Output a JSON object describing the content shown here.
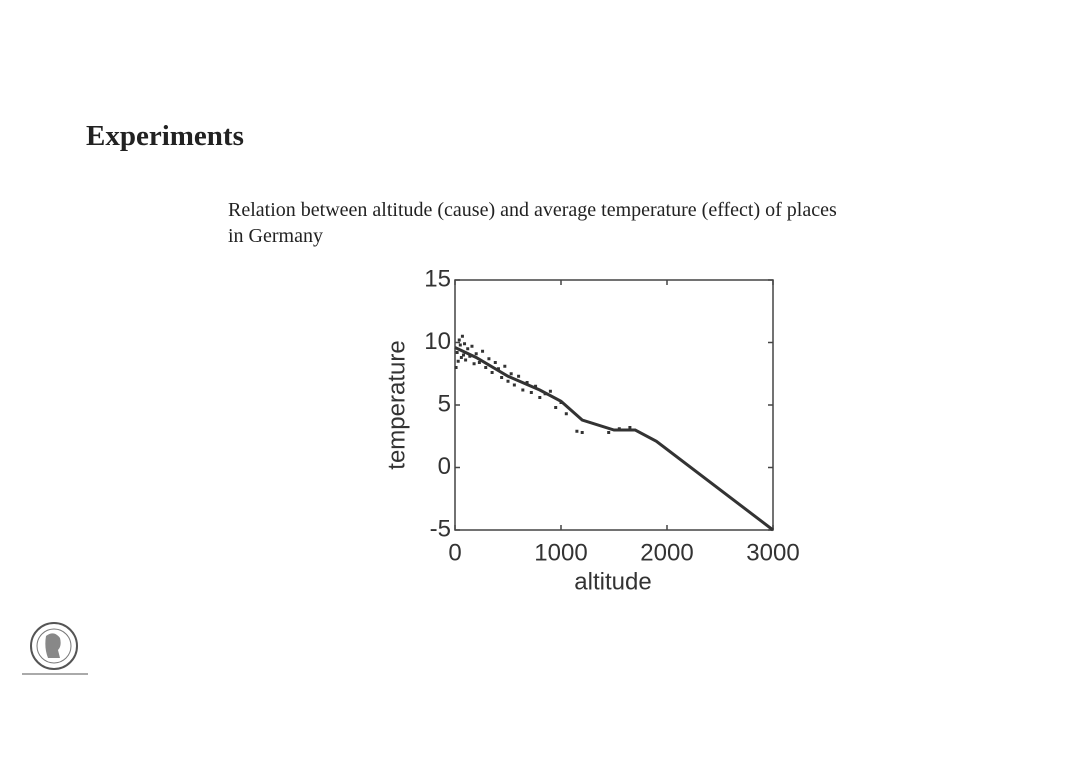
{
  "heading": "Experiments",
  "caption": "Relation between altitude (cause) and average temperature (effect) of places in Germany",
  "chart_data": {
    "type": "scatter",
    "x_label": "altitude",
    "y_label": "temperature",
    "xlim": [
      0,
      3000
    ],
    "ylim": [
      -5,
      15
    ],
    "xticks": [
      0,
      1000,
      2000,
      3000
    ],
    "yticks": [
      -5,
      0,
      5,
      10,
      15
    ],
    "color": "#333333",
    "x": [
      10,
      20,
      30,
      40,
      50,
      60,
      70,
      80,
      90,
      100,
      120,
      140,
      160,
      180,
      200,
      230,
      260,
      290,
      320,
      350,
      380,
      410,
      440,
      470,
      500,
      530,
      560,
      600,
      640,
      680,
      720,
      760,
      800,
      850,
      900,
      950,
      1000,
      1050,
      1150,
      1200,
      1450,
      1550,
      1650
    ],
    "values": [
      8.0,
      9.2,
      8.5,
      10.2,
      9.8,
      8.8,
      10.5,
      9.0,
      9.9,
      8.6,
      9.5,
      8.9,
      9.7,
      8.3,
      9.1,
      8.4,
      9.3,
      8.0,
      8.7,
      7.6,
      8.4,
      7.9,
      7.2,
      8.1,
      6.9,
      7.5,
      6.6,
      7.3,
      6.2,
      6.8,
      6.0,
      6.5,
      5.6,
      5.9,
      6.1,
      4.8,
      5.2,
      4.3,
      2.9,
      2.8,
      2.8,
      3.1,
      3.2
    ],
    "fit": {
      "color": "#333333",
      "x": [
        0,
        200,
        500,
        800,
        1000,
        1200,
        1500,
        1700,
        1900,
        3000
      ],
      "values": [
        9.6,
        8.8,
        7.3,
        6.2,
        5.3,
        3.8,
        3.0,
        3.0,
        2.1,
        -5
      ]
    }
  }
}
